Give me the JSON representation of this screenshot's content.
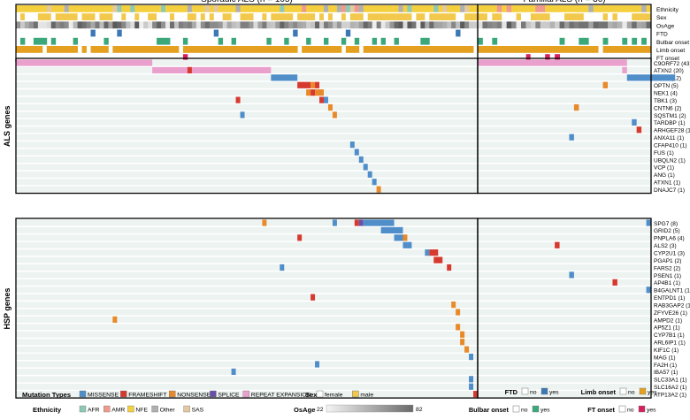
{
  "chart_data": {
    "type": "heatmap",
    "title": "",
    "panels": [
      {
        "name": "sporadic",
        "title": "Sporadic ALS (n = 105)",
        "samples": 105
      },
      {
        "name": "familial",
        "title": "Familial ALS (n = 36)",
        "samples": 36
      }
    ],
    "annotation_tracks": [
      "Ethnicity",
      "Sex",
      "OsAge",
      "FTD",
      "Bulbar onset",
      "Limb onset",
      "FT onset"
    ],
    "group_labels": [
      "ALS genes",
      "HSP genes"
    ],
    "genes": {
      "als": [
        {
          "gene": "C9ORF72",
          "count": 43
        },
        {
          "gene": "ATXN2",
          "count": 20
        },
        {
          "gene": "SOD1",
          "count": 12
        },
        {
          "gene": "OPTN",
          "count": 5
        },
        {
          "gene": "NEK1",
          "count": 4
        },
        {
          "gene": "TBK1",
          "count": 3
        },
        {
          "gene": "CNTN6",
          "count": 2
        },
        {
          "gene": "SQSTM1",
          "count": 2
        },
        {
          "gene": "TARDBP",
          "count": 1
        },
        {
          "gene": "ARHGEF28",
          "count": 1
        },
        {
          "gene": "ANXA11",
          "count": 1
        },
        {
          "gene": "CFAP410",
          "count": 1
        },
        {
          "gene": "FUS",
          "count": 1
        },
        {
          "gene": "UBQLN2",
          "count": 1
        },
        {
          "gene": "VCP",
          "count": 1
        },
        {
          "gene": "ANG",
          "count": 1
        },
        {
          "gene": "ATXN1",
          "count": 1
        },
        {
          "gene": "DNAJC7",
          "count": 1
        }
      ],
      "hsp": [
        {
          "gene": "SPG7",
          "count": 8
        },
        {
          "gene": "GRID2",
          "count": 5
        },
        {
          "gene": "PNPLA6",
          "count": 4
        },
        {
          "gene": "ALS2",
          "count": 3
        },
        {
          "gene": "CYP2U1",
          "count": 3
        },
        {
          "gene": "PGAP1",
          "count": 2
        },
        {
          "gene": "FARS2",
          "count": 2
        },
        {
          "gene": "PSEN1",
          "count": 1
        },
        {
          "gene": "AP4B1",
          "count": 1
        },
        {
          "gene": "B4GALNT1",
          "count": 1
        },
        {
          "gene": "ENTPD1",
          "count": 1
        },
        {
          "gene": "RAB3GAP2",
          "count": 1
        },
        {
          "gene": "ZFYVE26",
          "count": 1
        },
        {
          "gene": "AMPD2",
          "count": 1
        },
        {
          "gene": "AP5Z1",
          "count": 1
        },
        {
          "gene": "CYP7B1",
          "count": 1
        },
        {
          "gene": "ARL6IP1",
          "count": 1
        },
        {
          "gene": "KIF1C",
          "count": 1
        },
        {
          "gene": "MAG",
          "count": 1
        },
        {
          "gene": "FA2H",
          "count": 1
        },
        {
          "gene": "IBA57",
          "count": 1
        },
        {
          "gene": "SLC33A1",
          "count": 1
        },
        {
          "gene": "SLC16A2",
          "count": 1
        },
        {
          "gene": "ATP13A2",
          "count": 1
        }
      ]
    },
    "mutation_types": [
      {
        "label": "MISSENSE",
        "color": "#4f8ec9"
      },
      {
        "label": "FRAMESHIFT",
        "color": "#d63a2f"
      },
      {
        "label": "NONSENSE",
        "color": "#e8892a"
      },
      {
        "label": "SPLICE",
        "color": "#6a4fa8"
      },
      {
        "label": "REPEAT EXPANSION",
        "color": "#eaa0cc"
      }
    ],
    "ethnicity": [
      {
        "label": "AFR",
        "color": "#8dc9b4"
      },
      {
        "label": "AMR",
        "color": "#f09a8c"
      },
      {
        "label": "NFE",
        "color": "#f4d03f"
      },
      {
        "label": "Other",
        "color": "#b0b0b0"
      },
      {
        "label": "SAS",
        "color": "#e4c9a0"
      }
    ],
    "sex": [
      {
        "label": "female",
        "color": "#ffffff"
      },
      {
        "label": "male",
        "color": "#f2c94c"
      }
    ],
    "osage": {
      "label": "OsAge",
      "min": 22,
      "max": 82
    },
    "binary_legends": [
      {
        "title": "FTD",
        "no_label": "no",
        "yes_label": "yes",
        "yes_color": "#3b78b5"
      },
      {
        "title": "Bulbar onset",
        "no_label": "no",
        "yes_label": "yes",
        "yes_color": "#3aa87a"
      },
      {
        "title": "Limb onset",
        "no_label": "no",
        "yes_label": "yes",
        "yes_color": "#e5a020"
      },
      {
        "title": "FT onset",
        "no_label": "no",
        "yes_label": "yes",
        "yes_color": "#d6205c"
      }
    ],
    "legend_titles": {
      "mutation": "Mutation Types",
      "ethnicity": "Ethnicity",
      "sex": "Sex",
      "osage": "OsAge"
    },
    "colors": {
      "grid_bg": "#ecf3f1",
      "ftd_yes": "#3b78b5",
      "bulbar_yes": "#3aa87a",
      "limb_yes": "#e5a020",
      "ftonset_yes": "#d6205c",
      "no_fill": "#ffffff"
    }
  }
}
